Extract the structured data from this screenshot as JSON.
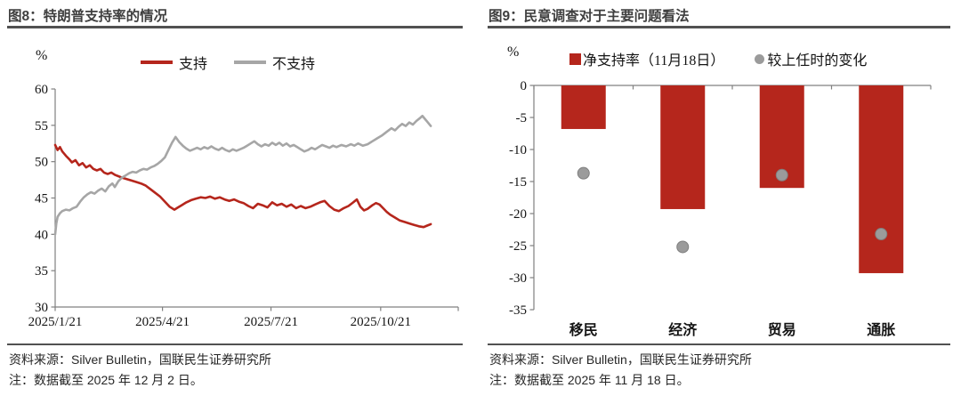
{
  "figures": [
    {
      "title": "图8：特朗普支持率的情况",
      "unit_label": "%",
      "source": "资料来源：Silver Bulletin，国联民生证券研究所",
      "note": "注：数据截至 2025 年 12 月 2 日。"
    },
    {
      "title": "图9：民意调查对于主要问题看法",
      "unit_label": "%",
      "source": "资料来源：Silver Bulletin，国联民生证券研究所",
      "note": "注：数据截至 2025 年 11 月 18 日。"
    }
  ],
  "chart_data": [
    {
      "type": "line",
      "title": "图8：特朗普支持率的情况",
      "ylabel": "%",
      "ylim": [
        30,
        60
      ],
      "yticks": [
        30,
        35,
        40,
        45,
        50,
        55,
        60
      ],
      "x_unit": "days since 2025/1/21",
      "x_range": [
        0,
        315
      ],
      "xticks": [
        {
          "day": 0,
          "label": "2025/1/21"
        },
        {
          "day": 90,
          "label": "2025/4/21"
        },
        {
          "day": 181,
          "label": "2025/7/21"
        },
        {
          "day": 273,
          "label": "2025/10/21"
        }
      ],
      "grid": false,
      "legend_position": "top",
      "axis_color": "#808080",
      "series": [
        {
          "name": "支持",
          "color": "#b5261c",
          "points": [
            [
              0,
              52.3
            ],
            [
              2,
              51.6
            ],
            [
              4,
              52.0
            ],
            [
              6,
              51.4
            ],
            [
              9,
              50.8
            ],
            [
              12,
              50.3
            ],
            [
              14,
              49.9
            ],
            [
              17,
              50.2
            ],
            [
              20,
              49.5
            ],
            [
              23,
              49.8
            ],
            [
              26,
              49.2
            ],
            [
              29,
              49.5
            ],
            [
              32,
              49.0
            ],
            [
              35,
              48.8
            ],
            [
              38,
              49.0
            ],
            [
              41,
              48.5
            ],
            [
              44,
              48.3
            ],
            [
              47,
              48.5
            ],
            [
              50,
              48.2
            ],
            [
              53,
              48.0
            ],
            [
              56,
              47.8
            ],
            [
              60,
              47.6
            ],
            [
              64,
              47.4
            ],
            [
              68,
              47.2
            ],
            [
              72,
              47.0
            ],
            [
              76,
              46.7
            ],
            [
              80,
              46.2
            ],
            [
              84,
              45.7
            ],
            [
              88,
              45.2
            ],
            [
              92,
              44.5
            ],
            [
              96,
              43.8
            ],
            [
              100,
              43.4
            ],
            [
              103,
              43.7
            ],
            [
              106,
              44.0
            ],
            [
              110,
              44.4
            ],
            [
              114,
              44.7
            ],
            [
              118,
              44.9
            ],
            [
              122,
              45.1
            ],
            [
              126,
              45.0
            ],
            [
              130,
              45.2
            ],
            [
              134,
              44.9
            ],
            [
              138,
              45.1
            ],
            [
              142,
              44.8
            ],
            [
              146,
              44.6
            ],
            [
              150,
              44.8
            ],
            [
              154,
              44.5
            ],
            [
              158,
              44.3
            ],
            [
              162,
              43.9
            ],
            [
              166,
              43.6
            ],
            [
              170,
              44.2
            ],
            [
              174,
              44.0
            ],
            [
              178,
              43.7
            ],
            [
              182,
              44.4
            ],
            [
              186,
              44.0
            ],
            [
              190,
              44.2
            ],
            [
              194,
              43.8
            ],
            [
              198,
              44.1
            ],
            [
              202,
              43.6
            ],
            [
              206,
              43.9
            ],
            [
              210,
              43.6
            ],
            [
              214,
              43.8
            ],
            [
              218,
              44.1
            ],
            [
              222,
              44.4
            ],
            [
              226,
              44.6
            ],
            [
              230,
              43.9
            ],
            [
              234,
              43.4
            ],
            [
              238,
              43.2
            ],
            [
              242,
              43.6
            ],
            [
              246,
              43.9
            ],
            [
              250,
              44.4
            ],
            [
              253,
              44.8
            ],
            [
              256,
              43.8
            ],
            [
              259,
              43.3
            ],
            [
              262,
              43.5
            ],
            [
              266,
              44.0
            ],
            [
              269,
              44.3
            ],
            [
              272,
              44.1
            ],
            [
              275,
              43.6
            ],
            [
              278,
              43.1
            ],
            [
              281,
              42.7
            ],
            [
              285,
              42.3
            ],
            [
              289,
              41.9
            ],
            [
              293,
              41.7
            ],
            [
              297,
              41.5
            ],
            [
              301,
              41.3
            ],
            [
              305,
              41.1
            ],
            [
              309,
              41.0
            ],
            [
              312,
              41.2
            ],
            [
              315,
              41.4
            ]
          ]
        },
        {
          "name": "不支持",
          "color": "#a6a6a6",
          "points": [
            [
              0,
              40.0
            ],
            [
              1,
              41.5
            ],
            [
              2,
              42.4
            ],
            [
              4,
              42.9
            ],
            [
              6,
              43.2
            ],
            [
              9,
              43.4
            ],
            [
              12,
              43.3
            ],
            [
              15,
              43.6
            ],
            [
              18,
              43.8
            ],
            [
              21,
              44.5
            ],
            [
              24,
              45.1
            ],
            [
              27,
              45.5
            ],
            [
              30,
              45.8
            ],
            [
              33,
              45.6
            ],
            [
              36,
              46.0
            ],
            [
              39,
              46.3
            ],
            [
              42,
              45.9
            ],
            [
              45,
              46.6
            ],
            [
              48,
              47.0
            ],
            [
              50,
              46.5
            ],
            [
              53,
              47.3
            ],
            [
              56,
              47.8
            ],
            [
              59,
              48.1
            ],
            [
              62,
              48.4
            ],
            [
              65,
              48.6
            ],
            [
              68,
              48.5
            ],
            [
              71,
              48.8
            ],
            [
              74,
              49.0
            ],
            [
              77,
              48.9
            ],
            [
              80,
              49.2
            ],
            [
              83,
              49.4
            ],
            [
              86,
              49.7
            ],
            [
              89,
              50.1
            ],
            [
              92,
              50.6
            ],
            [
              95,
              51.6
            ],
            [
              98,
              52.6
            ],
            [
              101,
              53.4
            ],
            [
              104,
              52.7
            ],
            [
              107,
              52.2
            ],
            [
              110,
              51.8
            ],
            [
              113,
              51.5
            ],
            [
              116,
              51.7
            ],
            [
              119,
              51.9
            ],
            [
              122,
              51.7
            ],
            [
              125,
              52.0
            ],
            [
              128,
              51.8
            ],
            [
              131,
              52.1
            ],
            [
              134,
              51.8
            ],
            [
              137,
              51.6
            ],
            [
              140,
              51.9
            ],
            [
              143,
              51.6
            ],
            [
              146,
              51.4
            ],
            [
              149,
              51.7
            ],
            [
              152,
              51.5
            ],
            [
              155,
              51.7
            ],
            [
              158,
              51.9
            ],
            [
              161,
              52.2
            ],
            [
              164,
              52.5
            ],
            [
              167,
              52.8
            ],
            [
              170,
              52.4
            ],
            [
              173,
              52.1
            ],
            [
              176,
              52.4
            ],
            [
              179,
              52.2
            ],
            [
              182,
              52.6
            ],
            [
              185,
              52.3
            ],
            [
              188,
              52.6
            ],
            [
              191,
              52.2
            ],
            [
              194,
              52.5
            ],
            [
              197,
              52.1
            ],
            [
              200,
              52.3
            ],
            [
              203,
              52.0
            ],
            [
              206,
              51.7
            ],
            [
              209,
              51.4
            ],
            [
              212,
              51.6
            ],
            [
              215,
              51.9
            ],
            [
              218,
              51.7
            ],
            [
              221,
              52.0
            ],
            [
              224,
              52.3
            ],
            [
              227,
              52.1
            ],
            [
              230,
              51.9
            ],
            [
              233,
              52.2
            ],
            [
              236,
              52.0
            ],
            [
              240,
              52.3
            ],
            [
              244,
              52.1
            ],
            [
              248,
              52.4
            ],
            [
              251,
              52.2
            ],
            [
              254,
              52.5
            ],
            [
              258,
              52.2
            ],
            [
              262,
              52.4
            ],
            [
              266,
              52.8
            ],
            [
              270,
              53.2
            ],
            [
              274,
              53.6
            ],
            [
              278,
              54.1
            ],
            [
              282,
              54.6
            ],
            [
              285,
              54.3
            ],
            [
              288,
              54.8
            ],
            [
              291,
              55.2
            ],
            [
              294,
              54.9
            ],
            [
              297,
              55.4
            ],
            [
              300,
              55.1
            ],
            [
              303,
              55.6
            ],
            [
              306,
              56.0
            ],
            [
              308,
              56.3
            ],
            [
              310,
              55.9
            ],
            [
              312,
              55.5
            ],
            [
              315,
              54.9
            ]
          ]
        }
      ]
    },
    {
      "type": "bar",
      "title": "图9：民意调查对于主要问题看法",
      "ylabel": "%",
      "ylim": [
        -35,
        0
      ],
      "yticks": [
        0,
        -5,
        -10,
        -15,
        -20,
        -25,
        -30,
        -35
      ],
      "categories": [
        "移民",
        "经济",
        "贸易",
        "通胀"
      ],
      "grid": false,
      "legend_position": "top",
      "axis_color": "#808080",
      "series": [
        {
          "name": "净支持率（11月18日）",
          "type": "bar",
          "color": "#b5261c",
          "values": [
            -6.8,
            -19.3,
            -16.0,
            -29.3
          ]
        },
        {
          "name": "较上任时的变化",
          "type": "scatter",
          "color": "#9b9b9b",
          "values": [
            -13.7,
            -25.2,
            -14.0,
            -23.2
          ]
        }
      ]
    }
  ]
}
